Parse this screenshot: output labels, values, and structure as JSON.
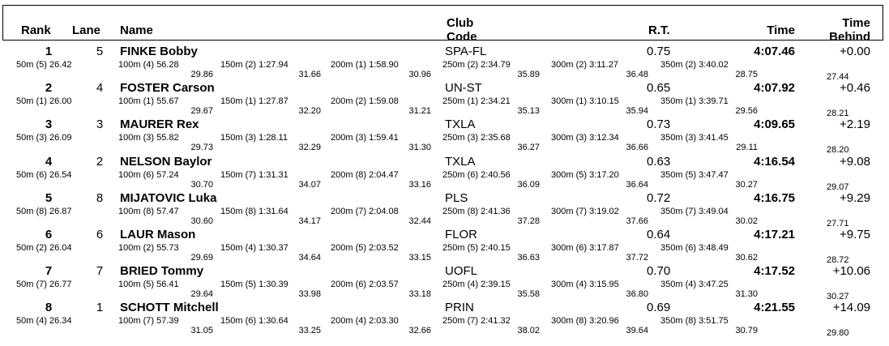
{
  "header": {
    "rank": "Rank",
    "lane": "Lane",
    "name": "Name",
    "club_line1": "Club",
    "club_line2": "Code",
    "rt": "R.T.",
    "time": "Time",
    "behind_line1": "Time",
    "behind_line2": "Behind"
  },
  "rows": [
    {
      "rank": "1",
      "lane": "5",
      "name": "FINKE Bobby",
      "club": "SPA-FL",
      "rt": "0.75",
      "time": "4:07.46",
      "behind": "+0.00",
      "s50": "50m (5) 26.42",
      "splits": [
        {
          "label": "100m (4) 56.28",
          "sub": "29.86"
        },
        {
          "label": "150m (2) 1:27.94",
          "sub": "31.66"
        },
        {
          "label": "200m (1) 1:58.90",
          "sub": "30.96"
        },
        {
          "label": "250m (2) 2:34.79",
          "sub": "35.89"
        },
        {
          "label": "300m (2) 3:11.27",
          "sub": "36.48"
        },
        {
          "label": "350m (2) 3:40.02",
          "sub": "28.75"
        }
      ],
      "last": "27.44"
    },
    {
      "rank": "2",
      "lane": "4",
      "name": "FOSTER Carson",
      "club": "UN-ST",
      "rt": "0.65",
      "time": "4:07.92",
      "behind": "+0.46",
      "s50": "50m (1) 26.00",
      "splits": [
        {
          "label": "100m (1) 55.67",
          "sub": "29.67"
        },
        {
          "label": "150m (1) 1:27.87",
          "sub": "32.20"
        },
        {
          "label": "200m (2) 1:59.08",
          "sub": "31.21"
        },
        {
          "label": "250m (1) 2:34.21",
          "sub": "35.13"
        },
        {
          "label": "300m (1) 3:10.15",
          "sub": "35.94"
        },
        {
          "label": "350m (1) 3:39.71",
          "sub": "29.56"
        }
      ],
      "last": "28.21"
    },
    {
      "rank": "3",
      "lane": "3",
      "name": "MAURER Rex",
      "club": "TXLA",
      "rt": "0.73",
      "time": "4:09.65",
      "behind": "+2.19",
      "s50": "50m (3) 26.09",
      "splits": [
        {
          "label": "100m (3) 55.82",
          "sub": "29.73"
        },
        {
          "label": "150m (3) 1:28.11",
          "sub": "32.29"
        },
        {
          "label": "200m (3) 1:59.41",
          "sub": "31.30"
        },
        {
          "label": "250m (3) 2:35.68",
          "sub": "36.27"
        },
        {
          "label": "300m (3) 3:12.34",
          "sub": "36.66"
        },
        {
          "label": "350m (3) 3:41.45",
          "sub": "29.11"
        }
      ],
      "last": "28.20"
    },
    {
      "rank": "4",
      "lane": "2",
      "name": "NELSON Baylor",
      "club": "TXLA",
      "rt": "0.63",
      "time": "4:16.54",
      "behind": "+9.08",
      "s50": "50m (6) 26.54",
      "splits": [
        {
          "label": "100m (6) 57.24",
          "sub": "30.70"
        },
        {
          "label": "150m (7) 1:31.31",
          "sub": "34.07"
        },
        {
          "label": "200m (8) 2:04.47",
          "sub": "33.16"
        },
        {
          "label": "250m (6) 2:40.56",
          "sub": "36.09"
        },
        {
          "label": "300m (5) 3:17.20",
          "sub": "36.64"
        },
        {
          "label": "350m (5) 3:47.47",
          "sub": "30.27"
        }
      ],
      "last": "29.07"
    },
    {
      "rank": "5",
      "lane": "8",
      "name": "MIJATOVIC Luka",
      "club": "PLS",
      "rt": "0.72",
      "time": "4:16.75",
      "behind": "+9.29",
      "s50": "50m (8) 26.87",
      "splits": [
        {
          "label": "100m (8) 57.47",
          "sub": "30.60"
        },
        {
          "label": "150m (8) 1:31.64",
          "sub": "34.17"
        },
        {
          "label": "200m (7) 2:04.08",
          "sub": "32.44"
        },
        {
          "label": "250m (8) 2:41.36",
          "sub": "37.28"
        },
        {
          "label": "300m (7) 3:19.02",
          "sub": "37.66"
        },
        {
          "label": "350m (7) 3:49.04",
          "sub": "30.02"
        }
      ],
      "last": "27.71"
    },
    {
      "rank": "6",
      "lane": "6",
      "name": "LAUR Mason",
      "club": "FLOR",
      "rt": "0.64",
      "time": "4:17.21",
      "behind": "+9.75",
      "s50": "50m (2) 26.04",
      "splits": [
        {
          "label": "100m (2) 55.73",
          "sub": "29.69"
        },
        {
          "label": "150m (4) 1:30.37",
          "sub": "34.64"
        },
        {
          "label": "200m (5) 2:03.52",
          "sub": "33.15"
        },
        {
          "label": "250m (5) 2:40.15",
          "sub": "36.63"
        },
        {
          "label": "300m (6) 3:17.87",
          "sub": "37.72"
        },
        {
          "label": "350m (6) 3:48.49",
          "sub": "30.62"
        }
      ],
      "last": "28.72"
    },
    {
      "rank": "7",
      "lane": "7",
      "name": "BRIED Tommy",
      "club": "UOFL",
      "rt": "0.70",
      "time": "4:17.52",
      "behind": "+10.06",
      "s50": "50m (7) 26.77",
      "splits": [
        {
          "label": "100m (5) 56.41",
          "sub": "29.64"
        },
        {
          "label": "150m (5) 1:30.39",
          "sub": "33.98"
        },
        {
          "label": "200m (6) 2:03.57",
          "sub": "33.18"
        },
        {
          "label": "250m (4) 2:39.15",
          "sub": "35.58"
        },
        {
          "label": "300m (4) 3:15.95",
          "sub": "36.80"
        },
        {
          "label": "350m (4) 3:47.25",
          "sub": "31.30"
        }
      ],
      "last": "30.27"
    },
    {
      "rank": "8",
      "lane": "1",
      "name": "SCHOTT Mitchell",
      "club": "PRIN",
      "rt": "0.69",
      "time": "4:21.55",
      "behind": "+14.09",
      "s50": "50m (4) 26.34",
      "splits": [
        {
          "label": "100m (7) 57.39",
          "sub": "31.05"
        },
        {
          "label": "150m (6) 1:30.64",
          "sub": "33.25"
        },
        {
          "label": "200m (4) 2:03.30",
          "sub": "32.66"
        },
        {
          "label": "250m (7) 2:41.32",
          "sub": "38.02"
        },
        {
          "label": "300m (8) 3:20.96",
          "sub": "39.64"
        },
        {
          "label": "350m (8) 3:51.75",
          "sub": "30.79"
        }
      ],
      "last": "29.80"
    }
  ]
}
